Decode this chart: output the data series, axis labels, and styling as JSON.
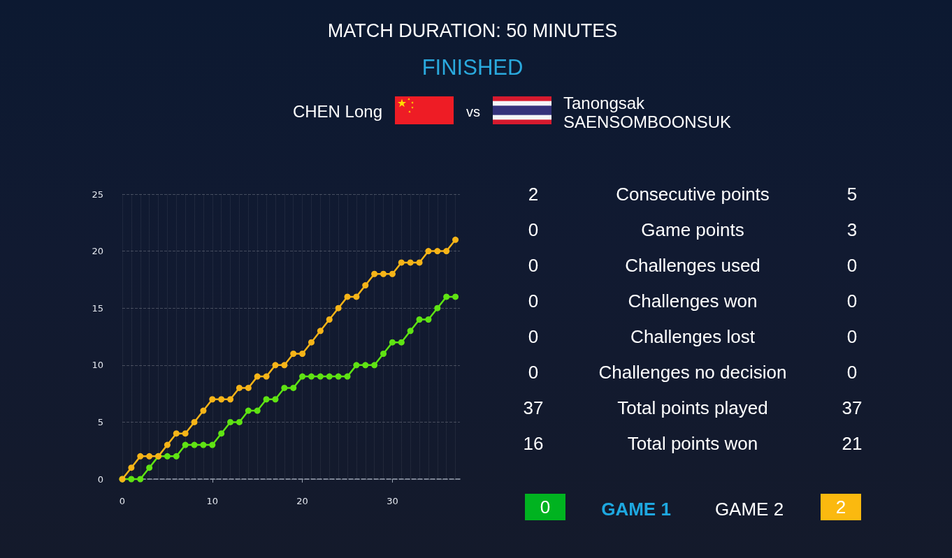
{
  "chart_data": [
    {
      "type": "other",
      "title": "MATCH DURATION: 50 MINUTES",
      "subtitle": "FINISHED",
      "annotations": [
        "CHEN Long",
        "vs",
        "Tanongsak SAENSOMBOONSUK"
      ]
    },
    {
      "type": "line",
      "x": [
        0,
        1,
        2,
        3,
        4,
        5,
        6,
        7,
        8,
        9,
        10,
        11,
        12,
        13,
        14,
        15,
        16,
        17,
        18,
        19,
        20,
        21,
        22,
        23,
        24,
        25,
        26,
        27,
        28,
        29,
        30,
        31,
        32,
        33,
        34,
        35,
        36,
        37
      ],
      "series": [
        {
          "color": "#5fe313",
          "values": [
            0,
            0,
            0,
            1,
            2,
            2,
            2,
            3,
            3,
            3,
            3,
            4,
            5,
            5,
            6,
            6,
            7,
            7,
            8,
            8,
            9,
            9,
            9,
            9,
            9,
            9,
            10,
            10,
            10,
            11,
            12,
            12,
            13,
            14,
            14,
            15,
            16,
            16
          ]
        },
        {
          "color": "#f6b418",
          "values": [
            0,
            1,
            2,
            2,
            2,
            3,
            4,
            4,
            5,
            6,
            7,
            7,
            7,
            8,
            8,
            9,
            9,
            10,
            10,
            11,
            11,
            12,
            13,
            14,
            15,
            16,
            16,
            17,
            18,
            18,
            18,
            19,
            19,
            19,
            20,
            20,
            20,
            21
          ]
        }
      ],
      "xlim": [
        0,
        37.5
      ],
      "ylim": [
        0,
        25
      ],
      "xticks": [
        0,
        {
          "value": 1,
          "label": null
        },
        {
          "value": 2,
          "label": null
        },
        {
          "value": 3,
          "label": null
        },
        {
          "value": 4,
          "label": null
        },
        {
          "value": 5,
          "label": null
        },
        {
          "value": 6,
          "label": null
        },
        {
          "value": 7,
          "label": null
        },
        {
          "value": 8,
          "label": null
        },
        {
          "value": 9,
          "label": null
        },
        10,
        {
          "value": 11,
          "label": null
        },
        {
          "value": 12,
          "label": null
        },
        {
          "value": 13,
          "label": null
        },
        {
          "value": 14,
          "label": null
        },
        {
          "value": 15,
          "label": null
        },
        {
          "value": 16,
          "label": null
        },
        {
          "value": 17,
          "label": null
        },
        {
          "value": 18,
          "label": null
        },
        {
          "value": 19,
          "label": null
        },
        20,
        {
          "value": 21,
          "label": null
        },
        {
          "value": 22,
          "label": null
        },
        {
          "value": 23,
          "label": null
        },
        {
          "value": 24,
          "label": null
        },
        {
          "value": 25,
          "label": null
        },
        {
          "value": 26,
          "label": null
        },
        {
          "value": 27,
          "label": null
        },
        {
          "value": 28,
          "label": null
        },
        {
          "value": 29,
          "label": null
        },
        30,
        {
          "value": 31,
          "label": null
        },
        {
          "value": 32,
          "label": null
        },
        {
          "value": 33,
          "label": null
        },
        {
          "value": 34,
          "label": null
        },
        {
          "value": 35,
          "label": null
        },
        {
          "value": 36,
          "label": null
        },
        {
          "value": 37,
          "label": null
        }
      ],
      "yticks": [
        0,
        5,
        10,
        15,
        20,
        25
      ],
      "grid": true,
      "marker": "circle",
      "line_style": "solid"
    },
    {
      "type": "other",
      "categories": [
        "Consecutive points",
        "Game points",
        "Challenges used",
        "Challenges won",
        "Challenges lost",
        "Challenges no decision",
        "Total points played",
        "Total points won"
      ],
      "series": [
        {
          "values": [
            2,
            0,
            0,
            0,
            0,
            0,
            37,
            16
          ]
        },
        {
          "values": [
            5,
            3,
            0,
            0,
            0,
            0,
            37,
            21
          ]
        }
      ],
      "data_labels": true
    },
    {
      "type": "other",
      "values": [
        0,
        2
      ],
      "colors": [
        "#00b320",
        "#fbb90f"
      ],
      "annotations": [
        "GAME 1",
        "GAME 2"
      ],
      "data_labels": true
    }
  ]
}
